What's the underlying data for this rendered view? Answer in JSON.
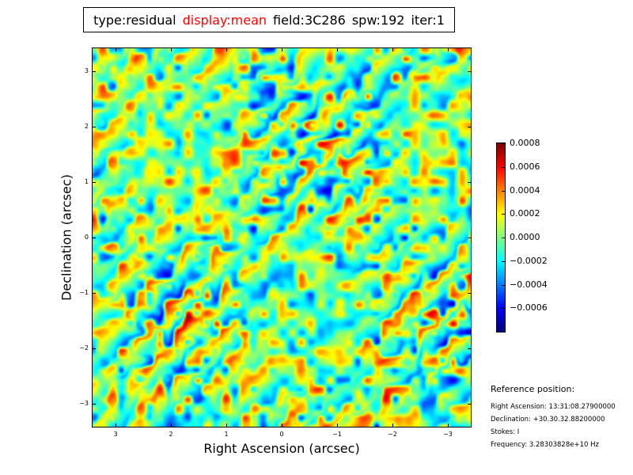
{
  "header": {
    "type_text": "type:residual",
    "display_text": "display:mean",
    "field_text": "field:3C286",
    "spw_text": "spw:192",
    "iter_text": "iter:1",
    "display_color": "#ff0000"
  },
  "chart_data": {
    "type": "heatmap",
    "title": "type:residual display:mean field:3C286 spw:192 iter:1",
    "xlabel": "Right Ascension (arcsec)",
    "ylabel": "Declination (arcsec)",
    "xlim": [
      3.43,
      -3.43
    ],
    "ylim": [
      -3.43,
      3.43
    ],
    "xticks": [
      3,
      2,
      1,
      0,
      -1,
      -2,
      -3
    ],
    "xtick_labels": [
      "3",
      "2",
      "1",
      "0",
      "−1",
      "−2",
      "−3"
    ],
    "yticks": [
      3,
      2,
      1,
      0,
      -1,
      -2,
      -3
    ],
    "ytick_labels": [
      "3",
      "2",
      "1",
      "0",
      "−1",
      "−2",
      "−3"
    ],
    "colormap": "jet",
    "value_range": [
      -0.0008,
      0.0008
    ],
    "colorbar_ticks": [
      0.0008,
      0.0006,
      0.0004,
      0.0002,
      0.0,
      -0.0002,
      -0.0004,
      -0.0006
    ],
    "colorbar_tick_labels": [
      "0.0008",
      "0.0006",
      "0.0004",
      "0.0002",
      "0.0000",
      "−0.0002",
      "−0.0004",
      "−0.0006"
    ],
    "pattern_description_note": "noise-like residual with diagonal striping"
  },
  "reference": {
    "title": "Reference position:",
    "ra": "Right Ascension: 13:31:08.27900000",
    "dec": "Declination: +30.30.32.88200000",
    "stokes": "Stokes: I",
    "frequency": "Frequency: 3.28303828e+10 Hz"
  }
}
